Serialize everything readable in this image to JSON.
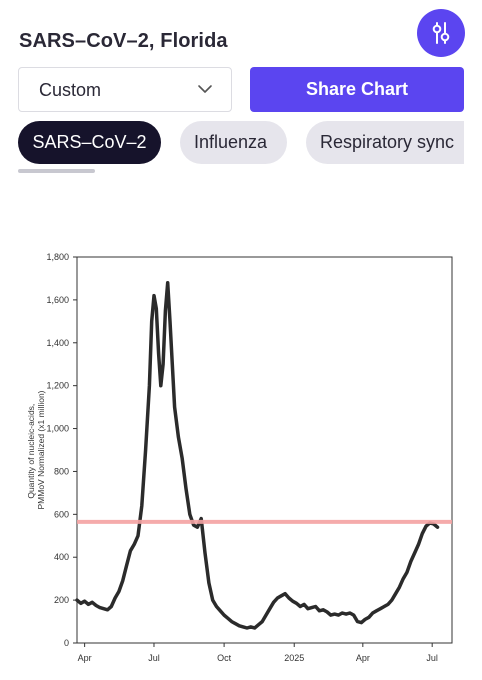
{
  "header": {
    "title": "SARS–CoV–2, Florida"
  },
  "filter_button": {
    "icon": "sliders-icon"
  },
  "controls": {
    "select_value": "Custom",
    "share_label": "Share Chart"
  },
  "tabs": [
    {
      "label": "SARS–CoV–2",
      "active": true
    },
    {
      "label": "Influenza",
      "active": false
    },
    {
      "label": "Respiratory sync",
      "active": false
    }
  ],
  "colors": {
    "accent": "#5b45f0",
    "tab_active": "#16132b",
    "tab_inactive": "#e6e5ec",
    "series_line": "#2b2b2b",
    "threshold_line": "#f4a3a3"
  },
  "chart_data": {
    "type": "line",
    "title": "",
    "xlabel": "",
    "ylabel": "Quantity of nucleic-acids,\nPMMoV Normalized (x1 million)",
    "ylim": [
      0,
      1800
    ],
    "yticks": [
      0,
      200,
      400,
      600,
      800,
      1000,
      1200,
      1400,
      1600,
      1800
    ],
    "ytick_labels": [
      "0",
      "200",
      "400",
      "600",
      "800",
      "1,000",
      "1,200",
      "1,400",
      "1,600",
      "1,800"
    ],
    "xlim": [
      "2024-03-22",
      "2025-07-27"
    ],
    "xticks": [
      "2024-04-01",
      "2024-07-01",
      "2024-10-01",
      "2025-01-01",
      "2025-04-01",
      "2025-07-01"
    ],
    "xtick_labels": [
      "Apr",
      "Jul",
      "Oct",
      "2025",
      "Apr",
      "Jul"
    ],
    "grid": false,
    "threshold": 565,
    "series": [
      {
        "name": "",
        "x": [
          "2024-03-22",
          "2024-03-27",
          "2024-04-01",
          "2024-04-06",
          "2024-04-11",
          "2024-04-16",
          "2024-04-21",
          "2024-04-26",
          "2024-05-01",
          "2024-05-06",
          "2024-05-11",
          "2024-05-16",
          "2024-05-21",
          "2024-05-26",
          "2024-05-31",
          "2024-06-05",
          "2024-06-10",
          "2024-06-15",
          "2024-06-20",
          "2024-06-25",
          "2024-06-28",
          "2024-07-01",
          "2024-07-04",
          "2024-07-07",
          "2024-07-10",
          "2024-07-13",
          "2024-07-16",
          "2024-07-19",
          "2024-07-22",
          "2024-07-25",
          "2024-07-28",
          "2024-08-02",
          "2024-08-07",
          "2024-08-12",
          "2024-08-17",
          "2024-08-22",
          "2024-08-27",
          "2024-09-01",
          "2024-09-06",
          "2024-09-11",
          "2024-09-16",
          "2024-09-21",
          "2024-09-26",
          "2024-10-01",
          "2024-10-06",
          "2024-10-11",
          "2024-10-16",
          "2024-10-21",
          "2024-10-26",
          "2024-10-31",
          "2024-11-05",
          "2024-11-10",
          "2024-11-15",
          "2024-11-20",
          "2024-11-25",
          "2024-11-30",
          "2024-12-05",
          "2024-12-10",
          "2024-12-15",
          "2024-12-20",
          "2024-12-25",
          "2024-12-30",
          "2025-01-04",
          "2025-01-09",
          "2025-01-14",
          "2025-01-19",
          "2025-01-24",
          "2025-01-29",
          "2025-02-03",
          "2025-02-08",
          "2025-02-13",
          "2025-02-18",
          "2025-02-23",
          "2025-02-28",
          "2025-03-05",
          "2025-03-10",
          "2025-03-15",
          "2025-03-20",
          "2025-03-25",
          "2025-03-30",
          "2025-04-04",
          "2025-04-09",
          "2025-04-14",
          "2025-04-19",
          "2025-04-24",
          "2025-04-29",
          "2025-05-04",
          "2025-05-09",
          "2025-05-14",
          "2025-05-19",
          "2025-05-24",
          "2025-05-29",
          "2025-06-03",
          "2025-06-08",
          "2025-06-13",
          "2025-06-18",
          "2025-06-23",
          "2025-06-28",
          "2025-07-03",
          "2025-07-08"
        ],
        "values": [
          200,
          185,
          195,
          180,
          190,
          175,
          165,
          160,
          155,
          170,
          210,
          240,
          290,
          360,
          430,
          460,
          500,
          640,
          900,
          1200,
          1500,
          1620,
          1560,
          1350,
          1200,
          1300,
          1550,
          1680,
          1500,
          1300,
          1100,
          960,
          860,
          720,
          600,
          550,
          540,
          580,
          420,
          280,
          200,
          170,
          150,
          130,
          115,
          100,
          90,
          80,
          75,
          70,
          75,
          70,
          85,
          100,
          130,
          160,
          190,
          210,
          220,
          230,
          210,
          195,
          185,
          170,
          180,
          160,
          165,
          170,
          150,
          155,
          145,
          130,
          135,
          130,
          140,
          135,
          140,
          130,
          100,
          95,
          110,
          120,
          140,
          150,
          160,
          170,
          180,
          200,
          230,
          260,
          300,
          330,
          380,
          420,
          460,
          510,
          545,
          560,
          555,
          540
        ]
      }
    ]
  }
}
